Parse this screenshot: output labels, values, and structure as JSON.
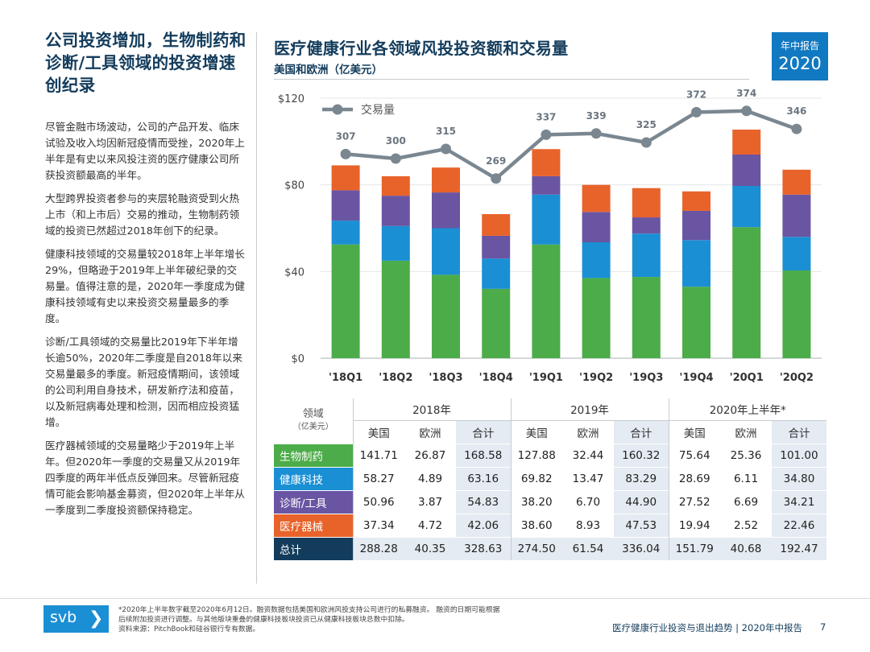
{
  "left": {
    "title": "公司投资增加，生物制药和诊断/工具领域的投资增速创纪录",
    "paragraphs": [
      "尽管金融市场波动，公司的产品开发、临床试验及收入均因新冠疫情而受挫，2020年上半年是有史以来风投注资的医疗健康公司所获投资额最高的半年。",
      "大型跨界投资者参与的夹层轮融资受到火热上市（和上市后）交易的推动，生物制药领域的投资已然超过2018年创下的纪录。",
      "健康科技领域的交易量较2018年上半年增长29%，但略逊于2019年上半年破纪录的交易量。值得注意的是，2020年一季度成为健康科技领域有史以来投资交易量最多的季度。",
      "诊断/工具领域的交易量比2019年下半年增长逾50%，2020年二季度是自2018年以来交易量最多的季度。新冠疫情期间，该领域的公司利用自身技术，研发新疗法和疫苗，以及新冠病毒处理和检测，因而相应投资猛增。",
      "医疗器械领域的交易量略少于2019年上半年。但2020年一季度的交易量又从2019年四季度的两年半低点反弹回来。尽管新冠疫情可能会影响基金募资，但2020年上半年从一季度到二季度投资额保持稳定。"
    ]
  },
  "header": {
    "title": "医疗健康行业各领域风投投资额和交易量",
    "subtitle": "美国和欧洲（亿美元）",
    "badge_top": "年中报告",
    "badge_year": "2020"
  },
  "chart_data": {
    "type": "bar",
    "stacked": true,
    "categories": [
      "'18Q1",
      "'18Q2",
      "'18Q3",
      "'18Q4",
      "'19Q1",
      "'19Q2",
      "'19Q3",
      "'19Q4",
      "'20Q1",
      "'20Q2"
    ],
    "ylim": [
      0,
      120
    ],
    "yticks": [
      "$0",
      "$40",
      "$80",
      "$120"
    ],
    "series": [
      {
        "name": "生物制药",
        "color": "#4cac49",
        "values": [
          52.5,
          45.0,
          38.5,
          32.0,
          52.5,
          37.0,
          37.5,
          33.0,
          60.5,
          40.5
        ]
      },
      {
        "name": "健康科技",
        "color": "#1a8fd4",
        "values": [
          11.0,
          16.0,
          21.5,
          14.0,
          23.0,
          16.5,
          20.0,
          21.5,
          19.0,
          15.5
        ]
      },
      {
        "name": "诊断/工具",
        "color": "#6a55a3",
        "values": [
          14.0,
          14.0,
          16.5,
          10.5,
          8.5,
          14.0,
          7.5,
          13.5,
          14.5,
          19.5
        ]
      },
      {
        "name": "医疗器械",
        "color": "#e8632a",
        "values": [
          11.5,
          9.0,
          11.5,
          10.0,
          12.5,
          12.5,
          13.5,
          9.0,
          11.5,
          11.5
        ]
      }
    ],
    "line": {
      "name": "交易量",
      "color": "#7a8791",
      "values": [
        307,
        300,
        315,
        269,
        337,
        339,
        325,
        372,
        374,
        346
      ]
    }
  },
  "table": {
    "corner_label": "领域",
    "corner_unit": "（亿美元）",
    "years": [
      "2018年",
      "2019年",
      "2020年上半年*"
    ],
    "subheaders": [
      "美国",
      "欧洲",
      "合计"
    ],
    "rows": [
      {
        "label": "生物制药",
        "values": [
          "141.71",
          "26.87",
          "168.58",
          "127.88",
          "32.44",
          "160.32",
          "75.64",
          "25.36",
          "101.00"
        ]
      },
      {
        "label": "健康科技",
        "values": [
          "58.27",
          "4.89",
          "63.16",
          "69.82",
          "13.47",
          "83.29",
          "28.69",
          "6.11",
          "34.80"
        ]
      },
      {
        "label": "诊断/工具",
        "values": [
          "50.96",
          "3.87",
          "54.83",
          "38.20",
          "6.70",
          "44.90",
          "27.52",
          "6.69",
          "34.21"
        ]
      },
      {
        "label": "医疗器械",
        "values": [
          "37.34",
          "4.72",
          "42.06",
          "38.60",
          "8.93",
          "47.53",
          "19.94",
          "2.52",
          "22.46"
        ]
      },
      {
        "label": "总计",
        "values": [
          "288.28",
          "40.35",
          "328.63",
          "274.50",
          "61.54",
          "336.04",
          "151.79",
          "40.68",
          "192.47"
        ]
      }
    ]
  },
  "footer": {
    "logo": "svb",
    "logo_chevron": "❯",
    "footnote_lines": [
      "*2020年上半年数字截至2020年6月12日。融资数据包括美国和欧洲风投支持公司进行的私募融资。 融资的日期可能根据",
      "后续附加投资进行调整。与其他版块重叠的健康科技板块投资已从健康科技板块总数中扣除。",
      "资料来源：PitchBook和硅谷银行专有数据。"
    ],
    "report_name": "医疗健康行业投资与退出趋势 | 2020年中报告",
    "page_number": "7"
  }
}
